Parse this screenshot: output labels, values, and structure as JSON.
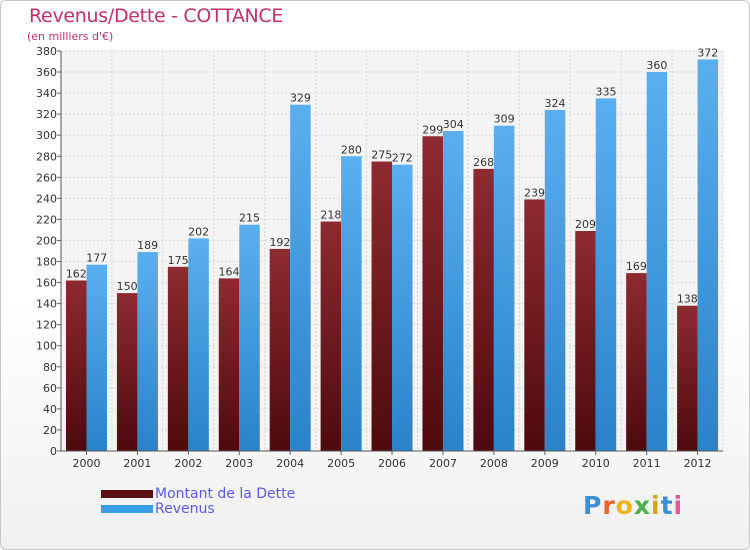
{
  "header": {
    "title": "Revenus/Dette - COTTANCE",
    "subtitle": "(en milliers d'€)"
  },
  "chart_data": {
    "type": "bar",
    "title": "Revenus/Dette - COTTANCE",
    "ylabel": "(en milliers d'€)",
    "xlabel": "",
    "categories": [
      "2000",
      "2001",
      "2002",
      "2003",
      "2004",
      "2005",
      "2006",
      "2007",
      "2008",
      "2009",
      "2010",
      "2011",
      "2012"
    ],
    "series": [
      {
        "name": "Montant de la Dette",
        "color": "#7a1e24",
        "values": [
          162,
          150,
          175,
          164,
          192,
          218,
          275,
          299,
          268,
          239,
          209,
          169,
          138
        ]
      },
      {
        "name": "Revenus",
        "color": "#3a9ee6",
        "values": [
          177,
          189,
          202,
          215,
          329,
          280,
          272,
          304,
          309,
          324,
          335,
          360,
          372
        ]
      }
    ],
    "ylim": [
      0,
      380
    ],
    "yticks": [
      0,
      20,
      40,
      60,
      80,
      100,
      120,
      140,
      160,
      180,
      200,
      220,
      240,
      260,
      280,
      300,
      320,
      340,
      360,
      380
    ],
    "grid": true,
    "legend_position": "bottom-left"
  },
  "legend": [
    {
      "label": "Montant de la Dette",
      "color": "#5a0f14"
    },
    {
      "label": "Revenus",
      "color": "#3a9ee6"
    }
  ],
  "logo": {
    "letters": [
      "P",
      "r",
      "o",
      "x",
      "i",
      "t",
      "i"
    ],
    "colors": [
      "#3a8fd8",
      "#e8632a",
      "#f2b21c",
      "#4cae4c",
      "#d9a51c",
      "#3a8fd8",
      "#e05a9a"
    ]
  }
}
